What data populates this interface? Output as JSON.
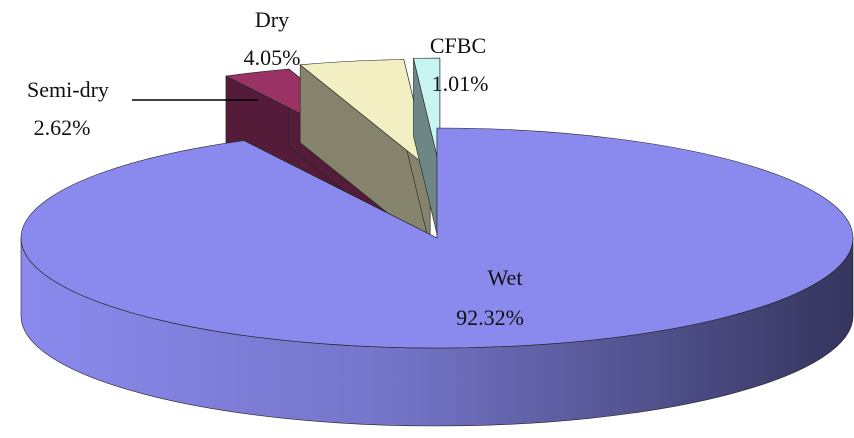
{
  "chart_data": {
    "type": "pie",
    "categories": [
      "Wet",
      "Semi-dry",
      "Dry",
      "CFBC"
    ],
    "values": [
      92.32,
      2.62,
      4.05,
      1.01
    ],
    "value_labels": [
      "92.32%",
      "2.62%",
      "4.05%",
      "1.01%"
    ],
    "colors": [
      "#8a8aee",
      "#993366",
      "#f2efc2",
      "#c8f4f4"
    ]
  }
}
